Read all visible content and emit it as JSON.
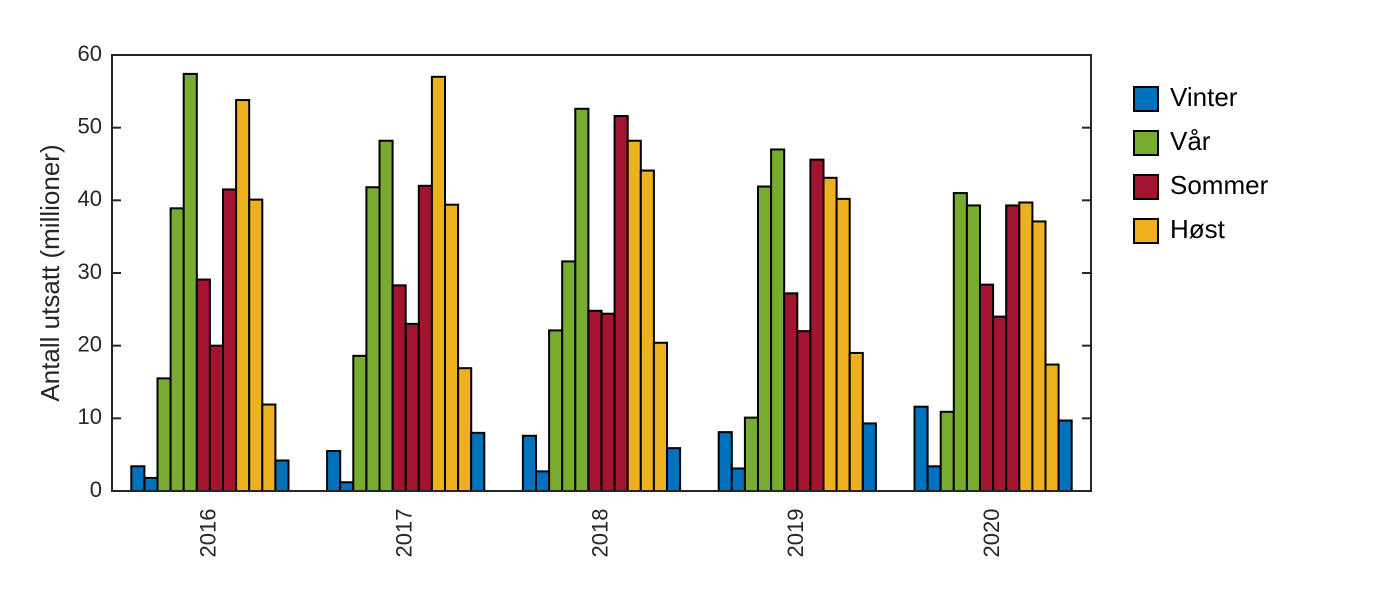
{
  "chart_data": {
    "type": "bar",
    "y_label": "Antall utsatt (millioner)",
    "categories": [
      "2016",
      "2017",
      "2018",
      "2019",
      "2020"
    ],
    "series": [
      {
        "name": "Vinter",
        "color": "#0072bd",
        "values": [
          [
            3.4,
            1.8,
            4.2
          ],
          [
            5.5,
            1.2,
            8.0
          ],
          [
            7.6,
            2.7,
            5.9
          ],
          [
            8.1,
            3.1,
            9.3
          ],
          [
            11.6,
            3.4,
            9.7
          ]
        ]
      },
      {
        "name": "Vår",
        "color": "#77ac30",
        "values": [
          [
            15.5,
            38.9,
            57.4
          ],
          [
            18.6,
            41.8,
            48.2
          ],
          [
            22.1,
            31.6,
            52.6
          ],
          [
            10.1,
            41.9,
            47.0
          ],
          [
            10.9,
            41.0,
            39.3
          ]
        ]
      },
      {
        "name": "Sommer",
        "color": "#a2142f",
        "values": [
          [
            29.1,
            20.0,
            41.5
          ],
          [
            28.3,
            23.0,
            42.0
          ],
          [
            24.8,
            24.4,
            51.6
          ],
          [
            27.2,
            22.0,
            45.6
          ],
          [
            28.4,
            24.0,
            39.3
          ]
        ]
      },
      {
        "name": "Høst",
        "color": "#edb120",
        "values": [
          [
            53.8,
            40.1,
            11.9
          ],
          [
            57.0,
            39.4,
            16.9
          ],
          [
            48.2,
            44.1,
            20.4
          ],
          [
            43.1,
            40.2,
            19.0
          ],
          [
            39.7,
            37.1,
            17.4
          ]
        ]
      }
    ],
    "ylim": [
      0,
      60
    ],
    "yticks": [
      0,
      10,
      20,
      30,
      40,
      50,
      60
    ]
  }
}
